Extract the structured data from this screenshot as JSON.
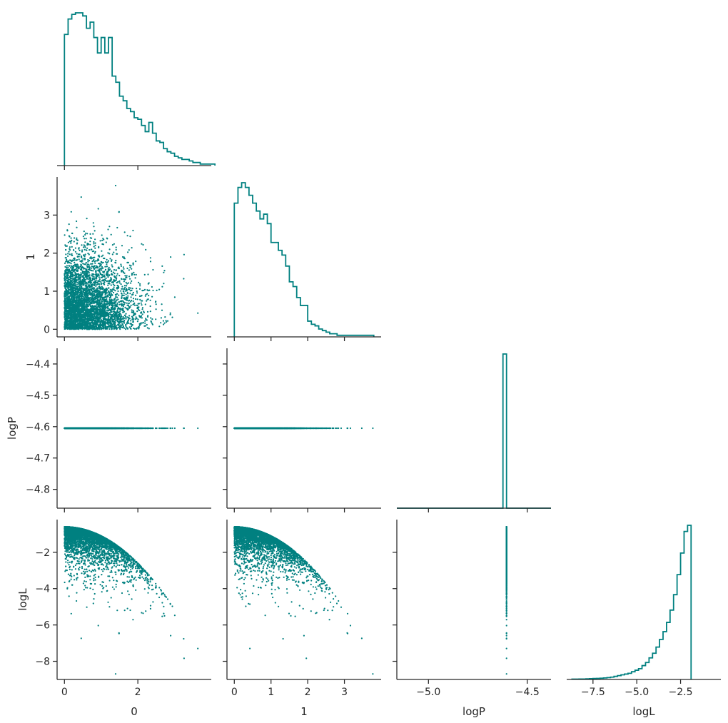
{
  "chart_data": {
    "type": "corner",
    "color": "#008080",
    "variables": [
      {
        "label": "0",
        "range": [
          -0.2,
          4.0
        ],
        "ticks": [
          {
            "v": 0,
            "t": "0"
          },
          {
            "v": 2,
            "t": "2"
          }
        ]
      },
      {
        "label": "1",
        "range": [
          -0.2,
          4.0
        ],
        "ticks": [
          {
            "v": 0,
            "t": "0"
          },
          {
            "v": 1,
            "t": "1"
          },
          {
            "v": 2,
            "t": "2"
          },
          {
            "v": 3,
            "t": "3"
          }
        ]
      },
      {
        "label": "logP",
        "range": [
          -5.16,
          -4.38
        ],
        "yrange": [
          -4.86,
          -4.35
        ],
        "ticks": [
          {
            "v": -5.0,
            "t": "−5.0"
          },
          {
            "v": -4.5,
            "t": "−4.5"
          }
        ],
        "yticks": [
          {
            "v": -4.4,
            "t": "−4.4"
          },
          {
            "v": -4.5,
            "t": "−4.5"
          },
          {
            "v": -4.6,
            "t": "−4.6"
          },
          {
            "v": -4.7,
            "t": "−4.7"
          },
          {
            "v": -4.8,
            "t": "−4.8"
          }
        ]
      },
      {
        "label": "logL",
        "range": [
          -9.0,
          -0.2
        ],
        "yrange": [
          -9.0,
          -0.2
        ],
        "ticks": [
          {
            "v": -7.5,
            "t": "−7.5"
          },
          {
            "v": -5.0,
            "t": "−5.0"
          },
          {
            "v": -2.5,
            "t": "−2.5"
          }
        ],
        "yticks": [
          {
            "v": -2,
            "t": "−2"
          },
          {
            "v": -4,
            "t": "−4"
          },
          {
            "v": -6,
            "t": "−6"
          },
          {
            "v": -8,
            "t": "−8"
          }
        ]
      }
    ],
    "logP_value": -4.605,
    "histograms": {
      "0": {
        "start": 0,
        "width": 0.1,
        "counts": [
          85,
          95,
          98,
          99,
          99,
          97,
          89,
          93,
          83,
          73,
          83,
          73,
          83,
          58,
          54,
          45,
          42,
          37,
          35,
          31,
          30,
          26,
          22,
          28,
          21,
          16,
          15,
          11,
          9,
          8,
          6,
          5,
          4,
          4,
          3,
          2,
          2,
          1,
          1,
          1,
          1
        ]
      },
      "1": {
        "start": 0,
        "width": 0.1,
        "counts": [
          85,
          95,
          98,
          95,
          90,
          85,
          80,
          75,
          78,
          72,
          60,
          60,
          55,
          52,
          45,
          35,
          32,
          25,
          20,
          20,
          10,
          8,
          7,
          5,
          4,
          3,
          2,
          2,
          1,
          1,
          1,
          1,
          1,
          1,
          1,
          1,
          1,
          1
        ]
      },
      "logP": {
        "start": -4.623,
        "width": 0.018,
        "counts": [
          100
        ],
        "baseline_range": [
          -5.16,
          -4.38
        ]
      },
      "logL": {
        "start": -8.7,
        "width": 0.2,
        "counts": [
          0.2,
          0.2,
          0.3,
          0.3,
          0.4,
          0.5,
          0.6,
          0.7,
          0.8,
          1,
          1.2,
          1.5,
          2,
          2.5,
          3,
          3.5,
          4,
          5,
          6,
          7,
          9,
          11,
          14,
          17,
          21,
          26,
          31,
          37,
          45,
          55,
          68,
          82,
          96,
          100
        ]
      }
    },
    "scatter": {
      "n_points": 4500,
      "distribution": "half-normal radius in (0,1), logL = -r^2/2 - 0.6"
    }
  }
}
